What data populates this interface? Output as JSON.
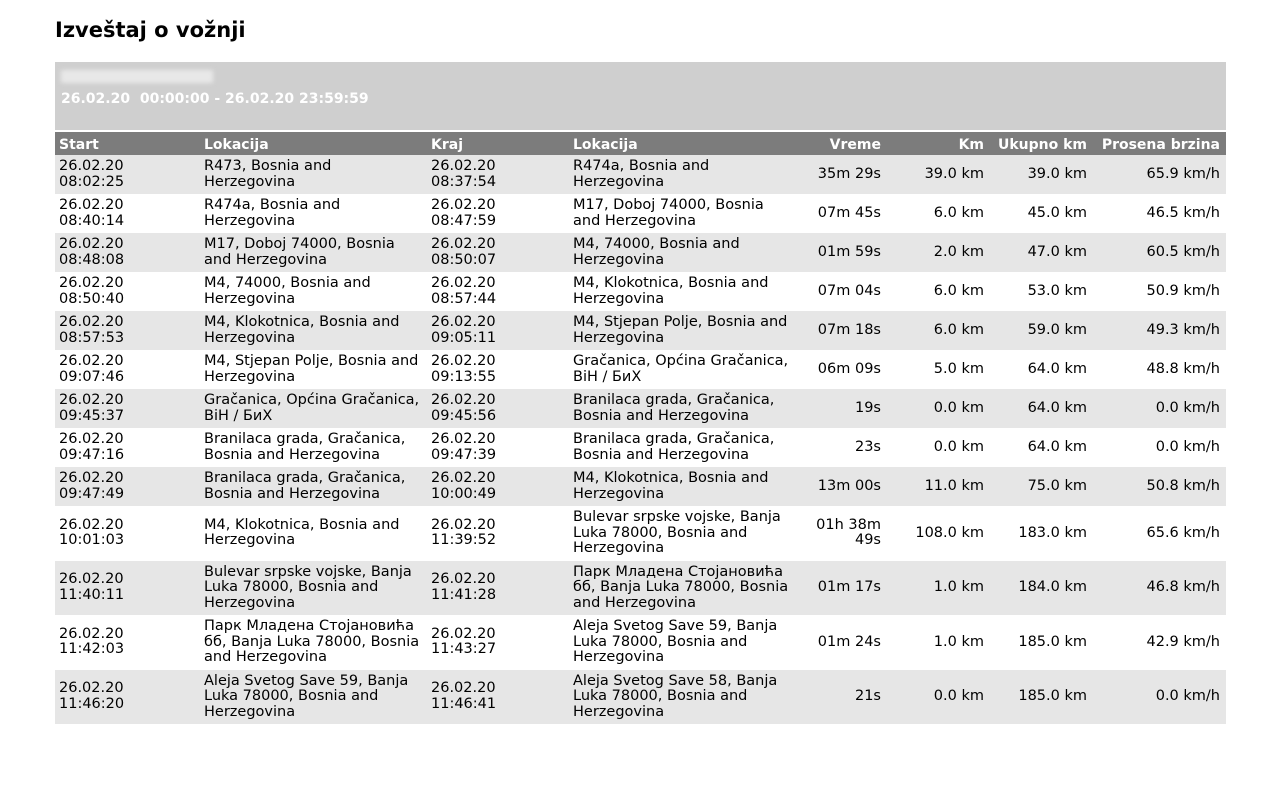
{
  "header": {
    "title": "Izveštaj o vožnji",
    "period": "26.02.20  00:00:00 - 26.02.20 23:59:59"
  },
  "table": {
    "columns": [
      "Start",
      "Lokacija",
      "Kraj",
      "Lokacija",
      "Vreme",
      "Km",
      "Ukupno km",
      "Prosena brzina"
    ],
    "rows": [
      [
        "26.02.20\n08:02:25",
        "R473, Bosnia and Herzegovina",
        "26.02.20\n08:37:54",
        "R474a, Bosnia and Herzegovina",
        "35m 29s",
        "39.0 km",
        "39.0 km",
        "65.9 km/h"
      ],
      [
        "26.02.20\n08:40:14",
        "R474a, Bosnia and Herzegovina",
        "26.02.20\n08:47:59",
        "M17, Doboj 74000, Bosnia and Herzegovina",
        "07m 45s",
        "6.0 km",
        "45.0 km",
        "46.5 km/h"
      ],
      [
        "26.02.20\n08:48:08",
        "M17, Doboj 74000, Bosnia and Herzegovina",
        "26.02.20\n08:50:07",
        "M4, 74000, Bosnia and Herzegovina",
        "01m 59s",
        "2.0 km",
        "47.0 km",
        "60.5 km/h"
      ],
      [
        "26.02.20\n08:50:40",
        "M4, 74000, Bosnia and Herzegovina",
        "26.02.20\n08:57:44",
        "M4, Klokotnica, Bosnia and Herzegovina",
        "07m 04s",
        "6.0 km",
        "53.0 km",
        "50.9 km/h"
      ],
      [
        "26.02.20\n08:57:53",
        "M4, Klokotnica, Bosnia and Herzegovina",
        "26.02.20\n09:05:11",
        "M4, Stjepan Polje, Bosnia and Herzegovina",
        "07m 18s",
        "6.0 km",
        "59.0 km",
        "49.3 km/h"
      ],
      [
        "26.02.20\n09:07:46",
        "M4, Stjepan Polje, Bosnia and Herzegovina",
        "26.02.20\n09:13:55",
        "Gračanica, Općina Gračanica, BiH / БиХ",
        "06m 09s",
        "5.0 km",
        "64.0 km",
        "48.8 km/h"
      ],
      [
        "26.02.20\n09:45:37",
        "Gračanica, Općina Gračanica, BiH / БиХ",
        "26.02.20\n09:45:56",
        "Branilaca grada, Gračanica, Bosnia and Herzegovina",
        "19s",
        "0.0 km",
        "64.0 km",
        "0.0 km/h"
      ],
      [
        "26.02.20\n09:47:16",
        "Branilaca grada, Gračanica, Bosnia and Herzegovina",
        "26.02.20\n09:47:39",
        "Branilaca grada, Gračanica, Bosnia and Herzegovina",
        "23s",
        "0.0 km",
        "64.0 km",
        "0.0 km/h"
      ],
      [
        "26.02.20\n09:47:49",
        "Branilaca grada, Gračanica, Bosnia and Herzegovina",
        "26.02.20\n10:00:49",
        "M4, Klokotnica, Bosnia and Herzegovina",
        "13m 00s",
        "11.0 km",
        "75.0 km",
        "50.8 km/h"
      ],
      [
        "26.02.20\n10:01:03",
        "M4, Klokotnica, Bosnia and Herzegovina",
        "26.02.20\n11:39:52",
        "Bulevar srpske vojske, Banja Luka 78000, Bosnia and Herzegovina",
        "01h 38m 49s",
        "108.0 km",
        "183.0 km",
        "65.6 km/h"
      ],
      [
        "26.02.20\n11:40:11",
        "Bulevar srpske vojske, Banja Luka 78000, Bosnia and Herzegovina",
        "26.02.20\n11:41:28",
        "Парк Младена Стојановића бб, Banja Luka 78000, Bosnia and Herzegovina",
        "01m 17s",
        "1.0 km",
        "184.0 km",
        "46.8 km/h"
      ],
      [
        "26.02.20\n11:42:03",
        "Парк Младена Стојановића бб, Banja Luka 78000, Bosnia and Herzegovina",
        "26.02.20\n11:43:27",
        "Aleja Svetog Save 59, Banja Luka 78000, Bosnia and Herzegovina",
        "01m 24s",
        "1.0 km",
        "185.0 km",
        "42.9 km/h"
      ],
      [
        "26.02.20\n11:46:20",
        "Aleja Svetog Save 59, Banja Luka 78000, Bosnia and Herzegovina",
        "26.02.20\n11:46:41",
        "Aleja Svetog Save 58, Banja Luka 78000, Bosnia and Herzegovina",
        "21s",
        "0.0 km",
        "185.0 km",
        "0.0 km/h"
      ]
    ]
  }
}
